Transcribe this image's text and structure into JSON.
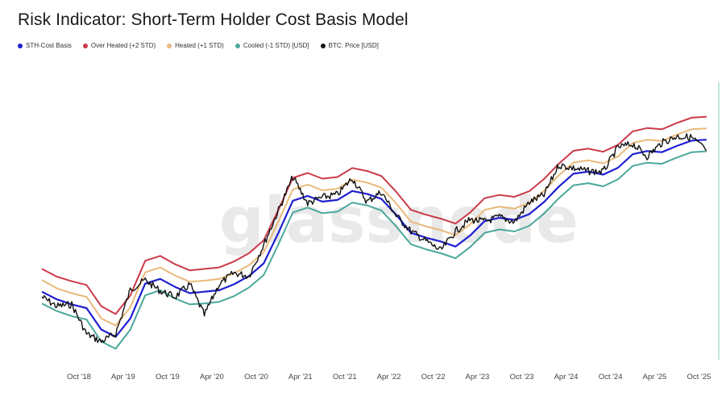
{
  "title": "Risk Indicator: Short-Term Holder Cost Basis Model",
  "watermark": "glassnode",
  "colors": {
    "sth_cost_basis": "#1f1fd1",
    "over_heated": "#cc3a4a",
    "heated": "#e9b97a",
    "cooled": "#4aa89a",
    "btc_price": "#111111"
  },
  "legend": [
    {
      "label": "STH-Cost Basis",
      "color": "#1f1fd1"
    },
    {
      "label": "Over Heated (+2 STD)",
      "color": "#cc3a4a"
    },
    {
      "label": "Heated (+1 STD)",
      "color": "#e9b97a"
    },
    {
      "label": "Cooled (-1 STD) [USD]",
      "color": "#4aa89a"
    },
    {
      "label": "BTC: Price [USD]",
      "color": "#111111"
    }
  ],
  "chart_data": {
    "type": "line",
    "title": "Risk Indicator: Short-Term Holder Cost Basis Model",
    "x_tick_labels": [
      "Oct '18",
      "Apr '19",
      "Oct '19",
      "Apr '20",
      "Oct '20",
      "Apr '21",
      "Oct '21",
      "Apr '22",
      "Oct '22",
      "Apr '23",
      "Oct '23",
      "Apr '24",
      "Oct '24",
      "Apr '25",
      "Oct '25"
    ],
    "y_axis": {
      "scale": "log",
      "visible": false
    },
    "grid": false,
    "legend_position": "top-left",
    "x": [
      "2018-05",
      "2018-07",
      "2018-09",
      "2018-11",
      "2019-01",
      "2019-03",
      "2019-05",
      "2019-07",
      "2019-09",
      "2019-11",
      "2020-01",
      "2020-03",
      "2020-05",
      "2020-07",
      "2020-09",
      "2020-11",
      "2021-01",
      "2021-03",
      "2021-05",
      "2021-07",
      "2021-09",
      "2021-11",
      "2022-01",
      "2022-03",
      "2022-05",
      "2022-07",
      "2022-09",
      "2022-11",
      "2023-01",
      "2023-03",
      "2023-05",
      "2023-07",
      "2023-09",
      "2023-11",
      "2024-01",
      "2024-03",
      "2024-05",
      "2024-07",
      "2024-09",
      "2024-11",
      "2025-01",
      "2025-03",
      "2025-05",
      "2025-07",
      "2025-09",
      "2025-11"
    ],
    "series": [
      {
        "name": "STH-Cost Basis",
        "values": [
          8200,
          7200,
          6600,
          6200,
          4300,
          3800,
          5200,
          9400,
          10200,
          8900,
          8000,
          8200,
          8400,
          9300,
          10700,
          13300,
          22500,
          38700,
          42000,
          38100,
          39200,
          45700,
          43500,
          39900,
          30500,
          22400,
          20600,
          19300,
          17700,
          21300,
          27300,
          28900,
          27900,
          30800,
          37900,
          49000,
          61300,
          63600,
          60400,
          67900,
          85500,
          90300,
          88500,
          98500,
          107900,
          109600
        ]
      },
      {
        "name": "Over Heated (+2 STD)",
        "values": [
          12100,
          10600,
          9800,
          9200,
          6400,
          5600,
          7700,
          13900,
          15100,
          13100,
          11800,
          12100,
          12400,
          13700,
          15800,
          19700,
          33300,
          57200,
          62100,
          56400,
          58000,
          67600,
          64300,
          59000,
          45100,
          33100,
          30500,
          28500,
          26200,
          31500,
          40400,
          42700,
          41300,
          45500,
          56100,
          72500,
          90700,
          94100,
          89300,
          100400,
          126500,
          133600,
          130900,
          145700,
          159600,
          162100
        ]
      },
      {
        "name": "Heated (+1 STD)",
        "values": [
          10000,
          8700,
          8000,
          7500,
          5200,
          4600,
          6300,
          11400,
          12400,
          10800,
          9700,
          9900,
          10200,
          11200,
          12900,
          16100,
          27300,
          46900,
          50900,
          46200,
          47500,
          55400,
          52700,
          48400,
          37000,
          27100,
          25000,
          23400,
          21500,
          25800,
          33100,
          35000,
          33800,
          37300,
          45900,
          59400,
          74300,
          77100,
          73200,
          82300,
          103700,
          109500,
          107300,
          119400,
          130800,
          132900
        ]
      },
      {
        "name": "Cooled (-1 STD) [USD]",
        "values": [
          6700,
          5900,
          5400,
          5100,
          3500,
          3100,
          4300,
          7700,
          8400,
          7300,
          6600,
          6700,
          6900,
          7600,
          8800,
          10900,
          18500,
          31700,
          34400,
          31300,
          32100,
          37500,
          35700,
          32800,
          25000,
          18400,
          16900,
          15800,
          14500,
          17500,
          22400,
          23700,
          22900,
          25200,
          31100,
          40200,
          50300,
          52200,
          49500,
          55700,
          70100,
          74000,
          72600,
          80800,
          88500,
          89900
        ]
      },
      {
        "name": "BTC: Price [USD]",
        "values": [
          7500,
          6400,
          6600,
          4000,
          3500,
          4000,
          8500,
          10000,
          8300,
          7500,
          9300,
          5500,
          9300,
          11300,
          10700,
          18300,
          33000,
          58000,
          37000,
          41000,
          43000,
          57000,
          38000,
          45000,
          30000,
          23000,
          19500,
          16500,
          23000,
          28000,
          27200,
          29300,
          26900,
          37700,
          42600,
          71000,
          67500,
          64000,
          63500,
          96000,
          102000,
          82500,
          104000,
          116000,
          114000,
          91000
        ]
      }
    ]
  }
}
